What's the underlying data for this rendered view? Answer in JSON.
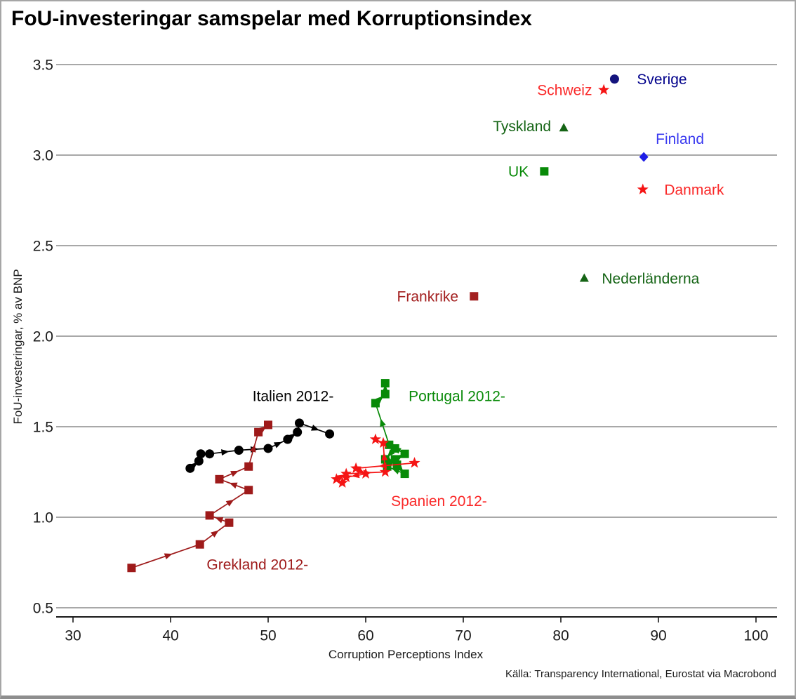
{
  "chart_data": {
    "type": "scatter",
    "title": "FoU-investeringar samspelar med Korruptionsindex",
    "xlabel": "Corruption Perceptions Index",
    "ylabel": "FoU-investeringar, % av BNP",
    "source": "Källa: Transparency International, Eurostat via Macrobond",
    "xlim": [
      28,
      102
    ],
    "ylim": [
      0.45,
      3.55
    ],
    "x_ticks": [
      30,
      40,
      50,
      60,
      70,
      80,
      90,
      100
    ],
    "y_ticks": [
      "3.5",
      "3.0",
      "2.5",
      "2.0",
      "1.5",
      "1.0",
      "0.5"
    ],
    "grid": "horizontal",
    "points": [
      {
        "id": "sverige",
        "label": "Sverige",
        "marker": "circle",
        "color": "#14147d",
        "label_color": "#00008b",
        "x": 85.5,
        "y": 3.42,
        "label_at": [
          87.8,
          3.42
        ],
        "label_anchor": "start"
      },
      {
        "id": "schweiz",
        "label": "Schweiz",
        "marker": "star",
        "color": "#f51414",
        "label_color": "#fa2828",
        "x": 84.4,
        "y": 3.36,
        "label_at": [
          83.2,
          3.36
        ],
        "label_anchor": "end"
      },
      {
        "id": "tyskland",
        "label": "Tyskland",
        "marker": "triangle",
        "color": "#156415",
        "label_color": "#156415",
        "x": 80.3,
        "y": 3.15,
        "label_at": [
          79.0,
          3.16
        ],
        "label_anchor": "end"
      },
      {
        "id": "finland",
        "label": "Finland",
        "marker": "diamond",
        "color": "#1e1ee6",
        "label_color": "#3a3af0",
        "x": 88.5,
        "y": 2.99,
        "label_at": [
          92.2,
          3.09
        ],
        "label_anchor": "middle"
      },
      {
        "id": "uk",
        "label": "UK",
        "marker": "square",
        "color": "#088a08",
        "label_color": "#088a08",
        "x": 78.3,
        "y": 2.91,
        "label_at": [
          76.7,
          2.91
        ],
        "label_anchor": "end"
      },
      {
        "id": "danmark",
        "label": "Danmark",
        "marker": "star",
        "color": "#f51414",
        "label_color": "#fa2828",
        "x": 88.4,
        "y": 2.81,
        "label_at": [
          90.6,
          2.81
        ],
        "label_anchor": "start"
      },
      {
        "id": "nederlanderna",
        "label": "Nederländerna",
        "marker": "triangle",
        "color": "#156415",
        "label_color": "#156415",
        "x": 82.4,
        "y": 2.32,
        "label_at": [
          84.2,
          2.32
        ],
        "label_anchor": "start"
      },
      {
        "id": "frankrike",
        "label": "Frankrike",
        "marker": "square",
        "color": "#a32020",
        "label_color": "#a32020",
        "x": 71.1,
        "y": 2.22,
        "label_at": [
          69.5,
          2.22
        ],
        "label_anchor": "end"
      }
    ],
    "series": [
      {
        "id": "italien",
        "label": "Italien 2012-",
        "marker": "circle",
        "color": "#000000",
        "label_color": "#000000",
        "label_at": [
          48.4,
          1.67
        ],
        "label_anchor": "start",
        "points": [
          [
            42,
            1.27
          ],
          [
            42.9,
            1.31
          ],
          [
            43.1,
            1.35
          ],
          [
            44,
            1.35
          ],
          [
            47,
            1.37
          ],
          [
            50,
            1.38
          ],
          [
            52,
            1.43
          ],
          [
            53,
            1.47
          ],
          [
            53.2,
            1.52
          ],
          [
            56.3,
            1.46
          ]
        ]
      },
      {
        "id": "grekland",
        "label": "Grekland 2012-",
        "marker": "square",
        "color": "#9e1a1a",
        "label_color": "#9e1a1a",
        "label_at": [
          43.7,
          0.74
        ],
        "label_anchor": "start",
        "points": [
          [
            36,
            0.72
          ],
          [
            43,
            0.85
          ],
          [
            46,
            0.97
          ],
          [
            44,
            1.01
          ],
          [
            48,
            1.15
          ],
          [
            45,
            1.21
          ],
          [
            48,
            1.28
          ],
          [
            49,
            1.47
          ],
          [
            50,
            1.51
          ]
        ]
      },
      {
        "id": "portugal",
        "label": "Portugal 2012-",
        "marker": "square",
        "color": "#088a08",
        "label_color": "#088a08",
        "label_at": [
          64.4,
          1.67
        ],
        "label_anchor": "start",
        "points": [
          [
            63,
            1.38
          ],
          [
            62,
            1.32
          ],
          [
            63.2,
            1.29
          ],
          [
            64,
            1.24
          ],
          [
            62.2,
            1.28
          ],
          [
            63,
            1.32
          ],
          [
            64,
            1.35
          ],
          [
            62.4,
            1.4
          ],
          [
            61,
            1.63
          ],
          [
            62,
            1.68
          ],
          [
            62,
            1.74
          ]
        ]
      },
      {
        "id": "spanien",
        "label": "Spanien 2012-",
        "marker": "star",
        "color": "#f51414",
        "label_color": "#fa2828",
        "label_at": [
          62.6,
          1.09
        ],
        "label_anchor": "start",
        "points": [
          [
            65,
            1.3
          ],
          [
            59,
            1.27
          ],
          [
            60,
            1.24
          ],
          [
            58,
            1.22
          ],
          [
            57.6,
            1.19
          ],
          [
            57,
            1.21
          ],
          [
            58,
            1.24
          ],
          [
            62,
            1.25
          ],
          [
            61.8,
            1.41
          ],
          [
            61,
            1.43
          ]
        ]
      }
    ]
  }
}
